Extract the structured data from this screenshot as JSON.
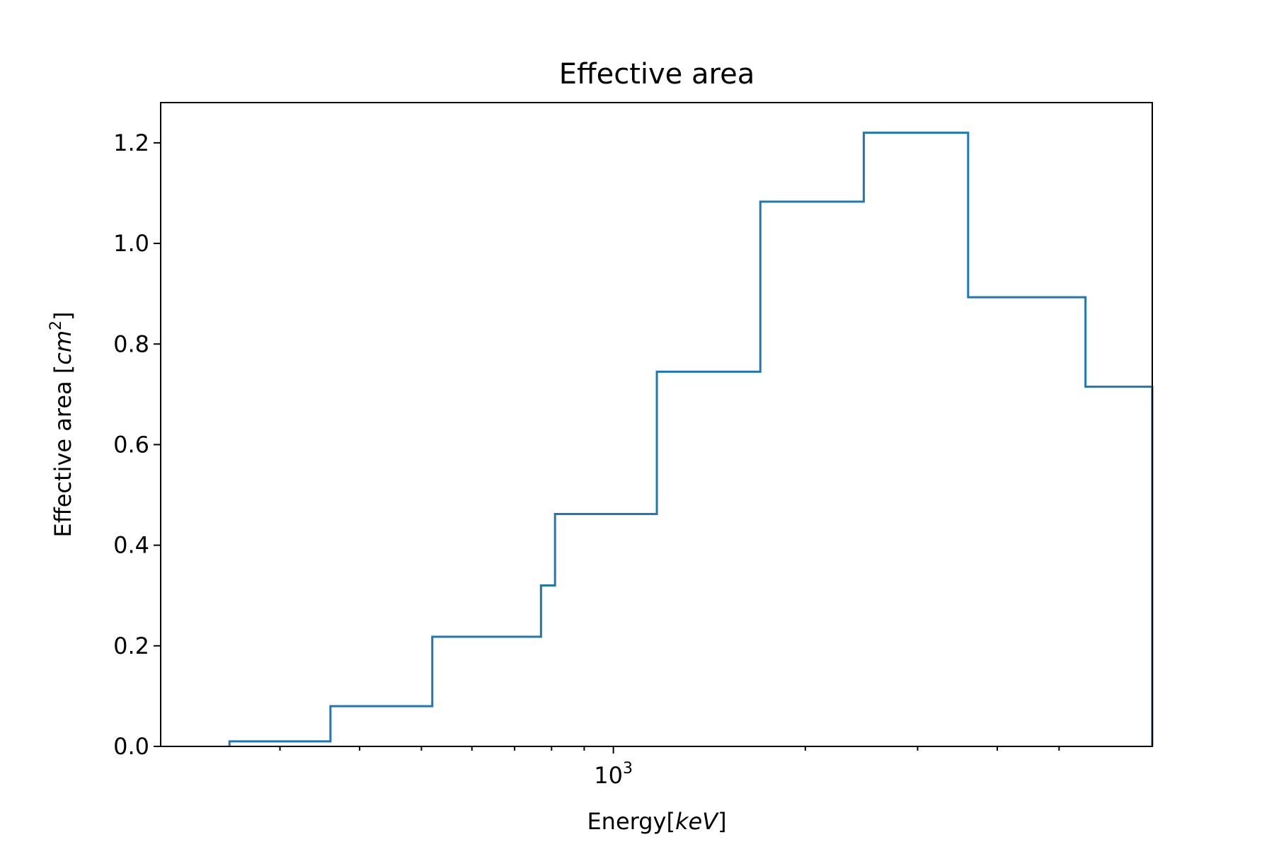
{
  "chart_data": {
    "type": "line",
    "drawstyle": "steps",
    "title": "Effective area",
    "xlabel_text": "Energy",
    "xlabel_unit": "keV",
    "ylabel_text": "Effective area ",
    "ylabel_unit_base": "cm",
    "ylabel_unit_exp": "2",
    "xscale": "log",
    "xlim": [
      195,
      7000
    ],
    "ylim": [
      0,
      1.28
    ],
    "grid": false,
    "legend": "none",
    "color": "#1f77b4",
    "x_major_ticks": [
      {
        "value": 1000,
        "base": "10",
        "exp": "3"
      }
    ],
    "x_minor_ticks": [
      300,
      400,
      500,
      600,
      700,
      800,
      900,
      2000,
      3000,
      4000,
      5000
    ],
    "y_ticks": [
      {
        "value": 0.0,
        "label": "0.0"
      },
      {
        "value": 0.2,
        "label": "0.2"
      },
      {
        "value": 0.4,
        "label": "0.4"
      },
      {
        "value": 0.6,
        "label": "0.6"
      },
      {
        "value": 0.8,
        "label": "0.8"
      },
      {
        "value": 1.0,
        "label": "1.0"
      },
      {
        "value": 1.2,
        "label": "1.2"
      }
    ],
    "bin_edges": [
      250,
      360,
      520,
      770,
      810,
      1170,
      1700,
      2470,
      3600,
      5500,
      7000
    ],
    "values": [
      0.01,
      0.08,
      0.218,
      0.32,
      0.462,
      0.745,
      1.083,
      1.22,
      0.893,
      0.715
    ]
  }
}
